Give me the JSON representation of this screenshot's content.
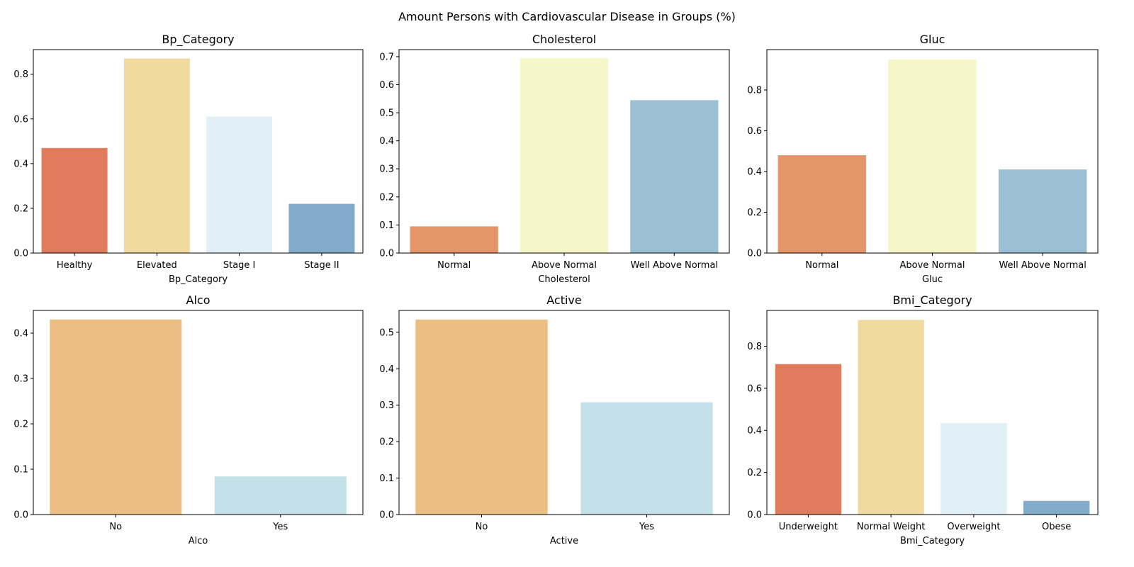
{
  "figure": {
    "title": "Amount Persons with Cardiovascular Disease in Groups (%)"
  },
  "chart_data": [
    {
      "type": "bar",
      "title": "Bp_Category",
      "xlabel": "Bp_Category",
      "ylabel": "",
      "categories": [
        "Healthy",
        "Elevated",
        "Stage I",
        "Stage II"
      ],
      "values": [
        0.47,
        0.87,
        0.61,
        0.22
      ],
      "colors": [
        "#e07b5b",
        "#f0da9e",
        "#e1f0f6",
        "#82abc9"
      ],
      "ylim": [
        0,
        0.91
      ],
      "yticks": [
        "0.0",
        "0.2",
        "0.4",
        "0.6",
        "0.8"
      ],
      "ytick_values": [
        0,
        0.2,
        0.4,
        0.6,
        0.8
      ],
      "grid": false
    },
    {
      "type": "bar",
      "title": "Cholesterol",
      "xlabel": "Cholesterol",
      "ylabel": "",
      "categories": [
        "Normal",
        "Above Normal",
        "Well Above Normal"
      ],
      "values": [
        0.095,
        0.695,
        0.545
      ],
      "colors": [
        "#e5956a",
        "#f6f7c9",
        "#9bc0d4"
      ],
      "ylim": [
        0,
        0.725
      ],
      "yticks": [
        "0.0",
        "0.1",
        "0.2",
        "0.3",
        "0.4",
        "0.5",
        "0.6",
        "0.7"
      ],
      "ytick_values": [
        0,
        0.1,
        0.2,
        0.3,
        0.4,
        0.5,
        0.6,
        0.7
      ],
      "grid": false
    },
    {
      "type": "bar",
      "title": "Gluc",
      "xlabel": "Gluc",
      "ylabel": "",
      "categories": [
        "Normal",
        "Above Normal",
        "Well Above Normal"
      ],
      "values": [
        0.48,
        0.95,
        0.41
      ],
      "colors": [
        "#e5956a",
        "#f6f7c9",
        "#9bc0d4"
      ],
      "ylim": [
        0,
        0.998
      ],
      "yticks": [
        "0.0",
        "0.2",
        "0.4",
        "0.6",
        "0.8"
      ],
      "ytick_values": [
        0,
        0.2,
        0.4,
        0.6,
        0.8
      ],
      "grid": false
    },
    {
      "type": "bar",
      "title": "Alco",
      "xlabel": "Alco",
      "ylabel": "",
      "categories": [
        "No",
        "Yes"
      ],
      "values": [
        0.43,
        0.084
      ],
      "colors": [
        "#ebbe84",
        "#c4e1e9"
      ],
      "ylim": [
        0,
        0.45
      ],
      "yticks": [
        "0.0",
        "0.1",
        "0.2",
        "0.3",
        "0.4"
      ],
      "ytick_values": [
        0,
        0.1,
        0.2,
        0.3,
        0.4
      ],
      "grid": false
    },
    {
      "type": "bar",
      "title": "Active",
      "xlabel": "Active",
      "ylabel": "",
      "categories": [
        "No",
        "Yes"
      ],
      "values": [
        0.535,
        0.308
      ],
      "colors": [
        "#ebbe84",
        "#c4e1e9"
      ],
      "ylim": [
        0,
        0.56
      ],
      "yticks": [
        "0.0",
        "0.1",
        "0.2",
        "0.3",
        "0.4",
        "0.5"
      ],
      "ytick_values": [
        0,
        0.1,
        0.2,
        0.3,
        0.4,
        0.5
      ],
      "grid": false
    },
    {
      "type": "bar",
      "title": "Bmi_Category",
      "xlabel": "Bmi_Category",
      "ylabel": "",
      "categories": [
        "Underweight",
        "Normal Weight",
        "Overweight",
        "Obese"
      ],
      "values": [
        0.715,
        0.925,
        0.435,
        0.065
      ],
      "colors": [
        "#e07b5b",
        "#f0da9e",
        "#e1f0f6",
        "#82abc9"
      ],
      "ylim": [
        0,
        0.97
      ],
      "yticks": [
        "0.0",
        "0.2",
        "0.4",
        "0.6",
        "0.8"
      ],
      "ytick_values": [
        0,
        0.2,
        0.4,
        0.6,
        0.8
      ],
      "grid": false
    }
  ]
}
